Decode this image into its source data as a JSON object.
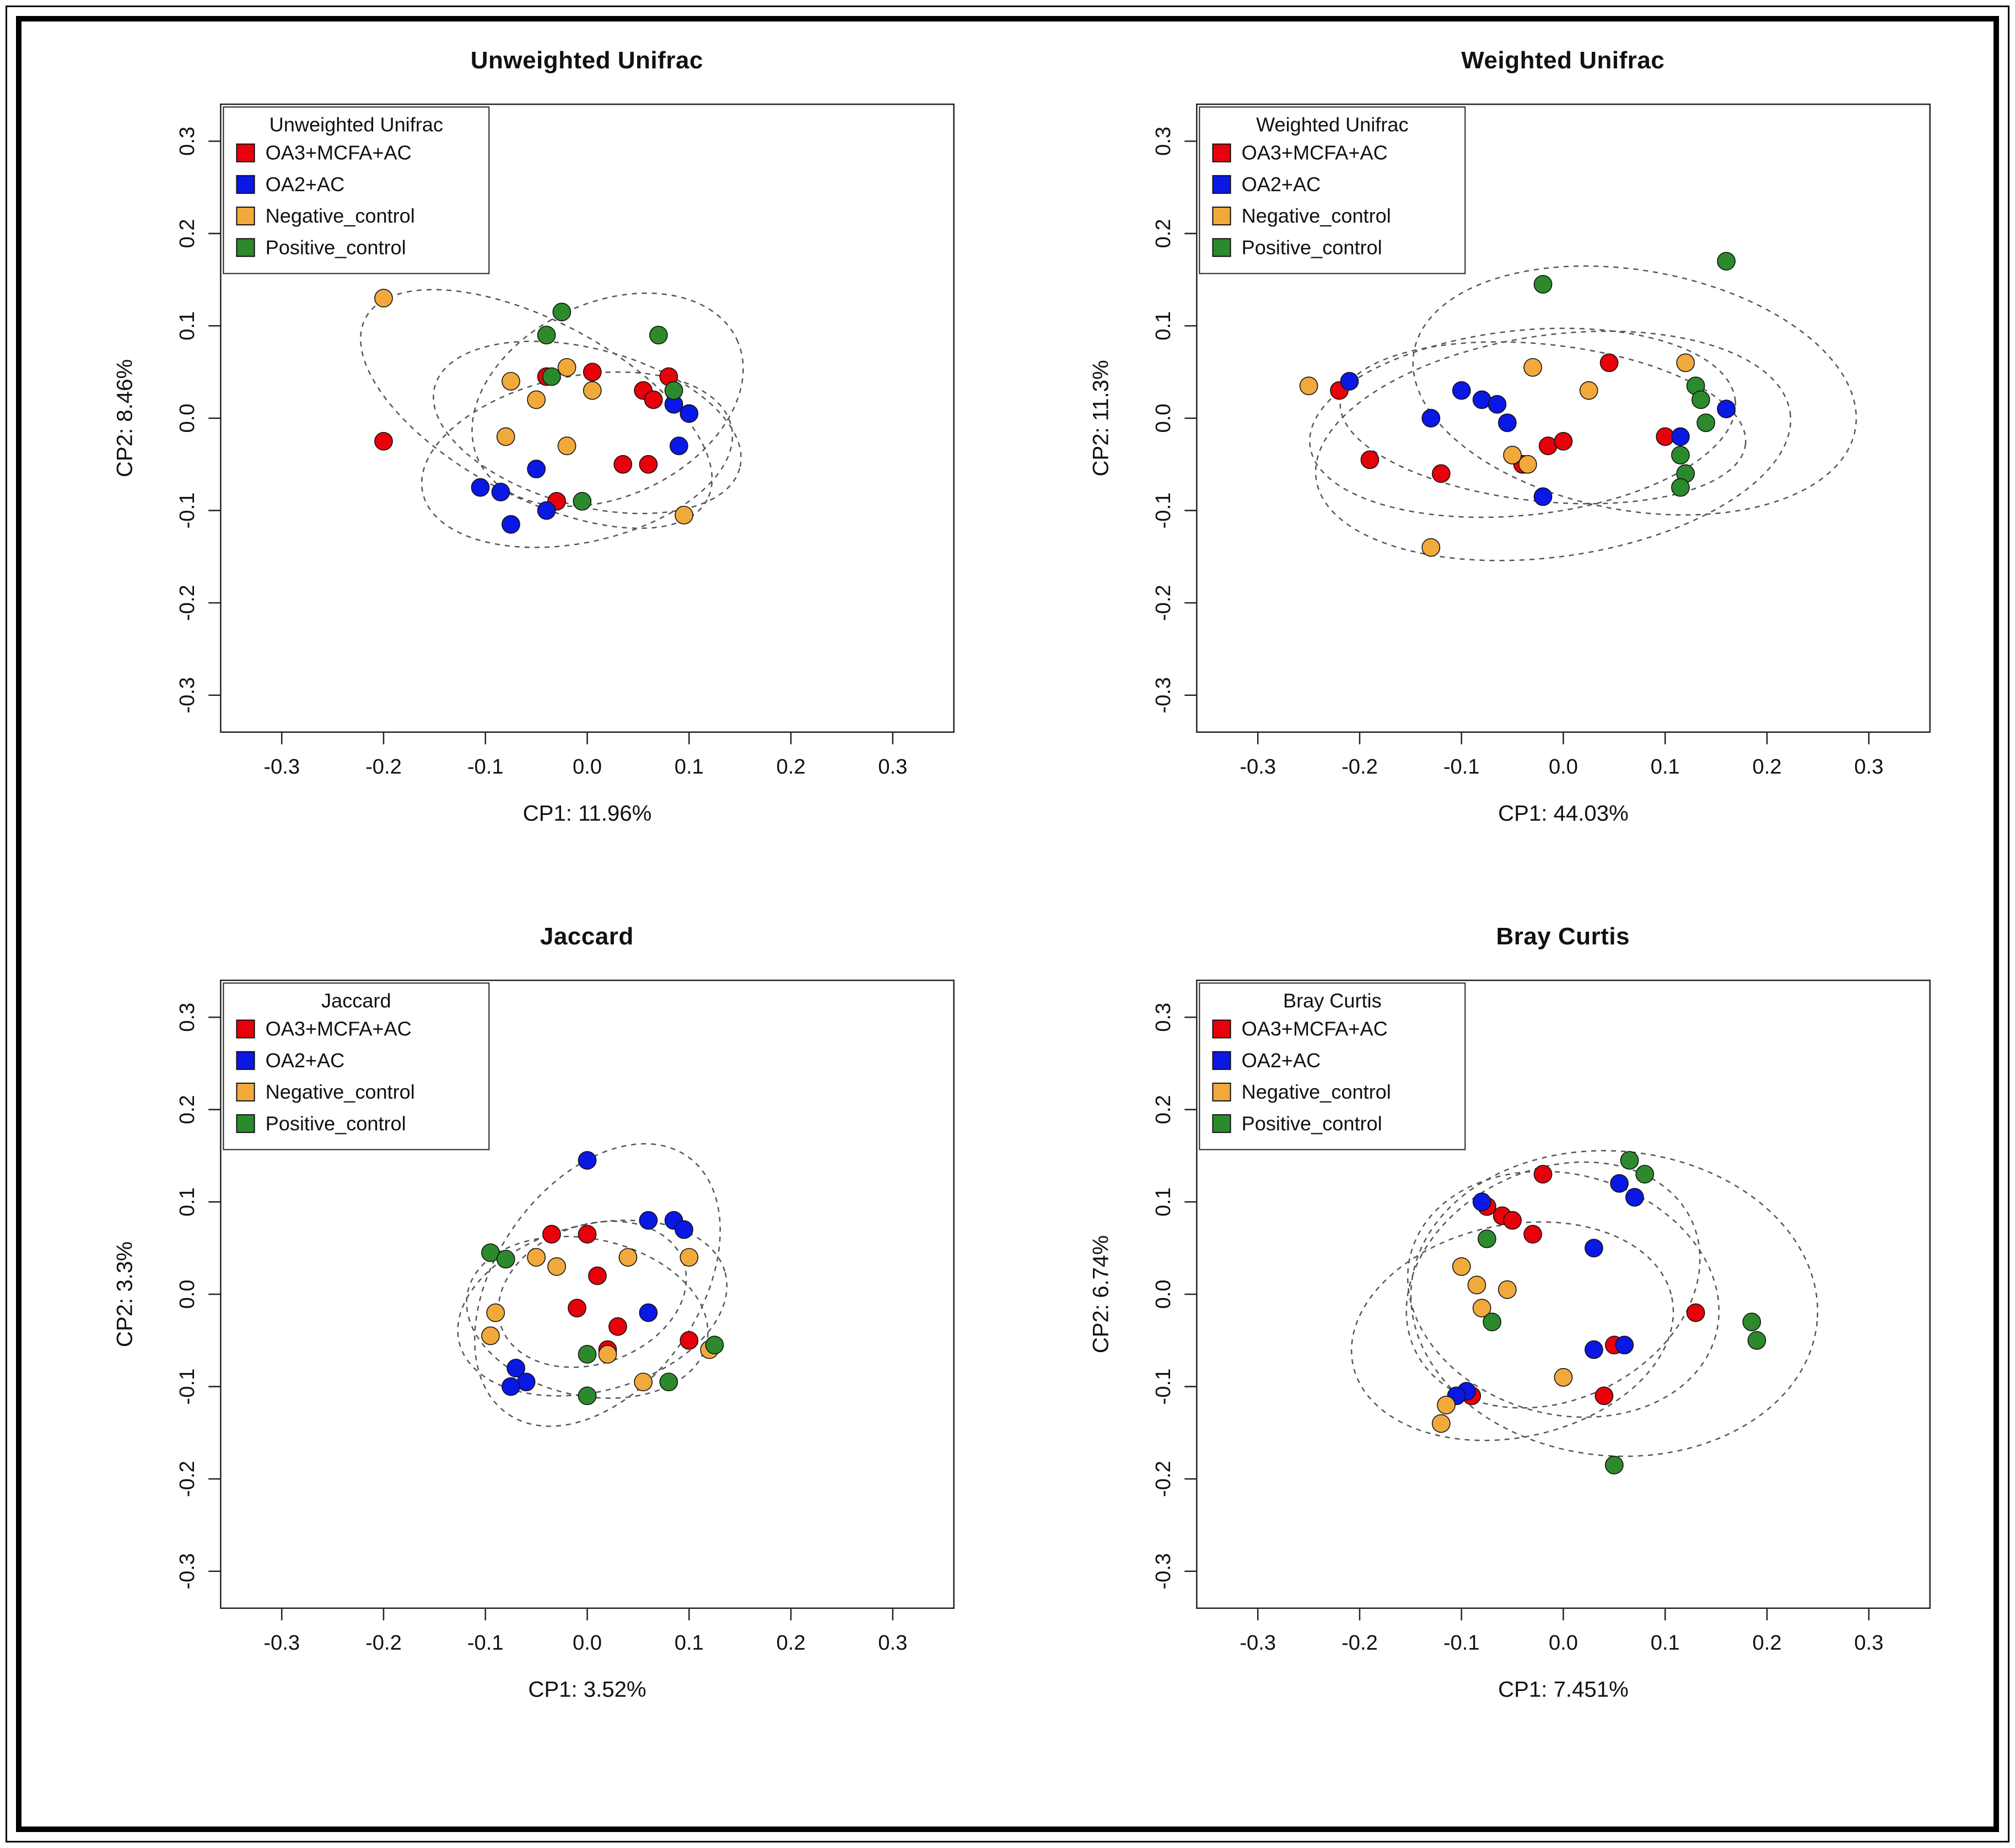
{
  "page": {
    "background": "#ffffff",
    "frame_color": "#000000"
  },
  "legend_groups": [
    "OA3+MCFA+AC",
    "OA2+AC",
    "Negative_control",
    "Positive_control"
  ],
  "group_colors": {
    "OA3+MCFA+AC": "#e8000b",
    "OA2+AC": "#0a18e6",
    "Negative_control": "#f2a93c",
    "Positive_control": "#2c8a2c"
  },
  "chart_data": [
    {
      "type": "scatter",
      "title": "Unweighted Unifrac",
      "legend_title": "Unweighted Unifrac",
      "xlabel": "CP1: 11.96%",
      "ylabel": "CP2: 8.46%",
      "xlim": [
        -0.36,
        0.36
      ],
      "ylim": [
        -0.34,
        0.34
      ],
      "ticks": [
        -0.3,
        -0.2,
        -0.1,
        0.0,
        0.1,
        0.2,
        0.3
      ],
      "grid": false,
      "legend_position": "top-left",
      "series": [
        {
          "name": "OA3+MCFA+AC",
          "color": "#e8000b",
          "points": [
            [
              -0.2,
              -0.025
            ],
            [
              -0.04,
              0.045
            ],
            [
              0.005,
              0.05
            ],
            [
              0.055,
              0.03
            ],
            [
              0.065,
              0.02
            ],
            [
              0.08,
              0.045
            ],
            [
              0.035,
              -0.05
            ],
            [
              0.06,
              -0.05
            ],
            [
              -0.03,
              -0.09
            ]
          ],
          "ellipse": {
            "cx": 0.0,
            "cy": -0.01,
            "rx": 0.155,
            "ry": 0.085,
            "angle": -15
          }
        },
        {
          "name": "OA2+AC",
          "color": "#0a18e6",
          "points": [
            [
              0.085,
              0.015
            ],
            [
              0.1,
              0.005
            ],
            [
              0.09,
              -0.03
            ],
            [
              -0.05,
              -0.055
            ],
            [
              -0.105,
              -0.075
            ],
            [
              -0.085,
              -0.08
            ],
            [
              -0.075,
              -0.115
            ],
            [
              -0.04,
              -0.1
            ]
          ],
          "ellipse": {
            "cx": -0.01,
            "cy": -0.045,
            "rx": 0.155,
            "ry": 0.09,
            "angle": 12
          }
        },
        {
          "name": "Negative_control",
          "color": "#f2a93c",
          "points": [
            [
              -0.2,
              0.13
            ],
            [
              -0.075,
              0.04
            ],
            [
              -0.02,
              0.055
            ],
            [
              -0.05,
              0.02
            ],
            [
              0.005,
              0.03
            ],
            [
              -0.08,
              -0.02
            ],
            [
              -0.02,
              -0.03
            ],
            [
              0.095,
              -0.105
            ]
          ],
          "ellipse": {
            "cx": -0.05,
            "cy": 0.01,
            "rx": 0.19,
            "ry": 0.095,
            "angle": -28
          }
        },
        {
          "name": "Positive_control",
          "color": "#2c8a2c",
          "points": [
            [
              -0.04,
              0.09
            ],
            [
              -0.025,
              0.115
            ],
            [
              0.07,
              0.09
            ],
            [
              -0.035,
              0.045
            ],
            [
              0.085,
              0.03
            ],
            [
              -0.005,
              -0.09
            ]
          ],
          "ellipse": {
            "cx": 0.02,
            "cy": 0.02,
            "rx": 0.14,
            "ry": 0.105,
            "angle": 25
          }
        }
      ]
    },
    {
      "type": "scatter",
      "title": "Weighted Unifrac",
      "legend_title": "Weighted Unifrac",
      "xlabel": "CP1: 44.03%",
      "ylabel": "CP2: 11.3%",
      "xlim": [
        -0.36,
        0.36
      ],
      "ylim": [
        -0.34,
        0.34
      ],
      "ticks": [
        -0.3,
        -0.2,
        -0.1,
        0.0,
        0.1,
        0.2,
        0.3
      ],
      "grid": false,
      "legend_position": "top-left",
      "series": [
        {
          "name": "OA3+MCFA+AC",
          "color": "#e8000b",
          "points": [
            [
              -0.22,
              0.03
            ],
            [
              -0.19,
              -0.045
            ],
            [
              -0.12,
              -0.06
            ],
            [
              -0.04,
              -0.05
            ],
            [
              -0.015,
              -0.03
            ],
            [
              0.0,
              -0.025
            ],
            [
              0.045,
              0.06
            ],
            [
              0.1,
              -0.02
            ]
          ],
          "ellipse": {
            "cx": -0.04,
            "cy": -0.005,
            "rx": 0.21,
            "ry": 0.1,
            "angle": 6
          }
        },
        {
          "name": "OA2+AC",
          "color": "#0a18e6",
          "points": [
            [
              -0.21,
              0.04
            ],
            [
              -0.13,
              0.0
            ],
            [
              -0.1,
              0.03
            ],
            [
              -0.08,
              0.02
            ],
            [
              -0.065,
              0.015
            ],
            [
              -0.055,
              -0.005
            ],
            [
              0.16,
              0.01
            ],
            [
              0.115,
              -0.02
            ],
            [
              -0.02,
              -0.085
            ]
          ],
          "ellipse": {
            "cx": -0.02,
            "cy": -0.005,
            "rx": 0.2,
            "ry": 0.085,
            "angle": -6
          }
        },
        {
          "name": "Negative_control",
          "color": "#f2a93c",
          "points": [
            [
              -0.25,
              0.035
            ],
            [
              -0.03,
              0.055
            ],
            [
              0.025,
              0.03
            ],
            [
              -0.05,
              -0.04
            ],
            [
              -0.035,
              -0.05
            ],
            [
              0.12,
              0.06
            ],
            [
              -0.13,
              -0.14
            ]
          ],
          "ellipse": {
            "cx": -0.01,
            "cy": -0.03,
            "rx": 0.235,
            "ry": 0.12,
            "angle": 8
          }
        },
        {
          "name": "Positive_control",
          "color": "#2c8a2c",
          "points": [
            [
              -0.02,
              0.145
            ],
            [
              0.16,
              0.17
            ],
            [
              0.13,
              0.035
            ],
            [
              0.135,
              0.02
            ],
            [
              0.14,
              -0.005
            ],
            [
              0.115,
              -0.04
            ],
            [
              0.12,
              -0.06
            ],
            [
              0.115,
              -0.075
            ]
          ],
          "ellipse": {
            "cx": 0.07,
            "cy": 0.03,
            "rx": 0.22,
            "ry": 0.13,
            "angle": -10
          }
        }
      ]
    },
    {
      "type": "scatter",
      "title": "Jaccard",
      "legend_title": "Jaccard",
      "xlabel": "CP1: 3.52%",
      "ylabel": "CP2: 3.3%",
      "xlim": [
        -0.36,
        0.36
      ],
      "ylim": [
        -0.34,
        0.34
      ],
      "ticks": [
        -0.3,
        -0.2,
        -0.1,
        0.0,
        0.1,
        0.2,
        0.3
      ],
      "grid": false,
      "legend_position": "top-left",
      "series": [
        {
          "name": "OA3+MCFA+AC",
          "color": "#e8000b",
          "points": [
            [
              -0.035,
              0.065
            ],
            [
              0.0,
              0.065
            ],
            [
              0.01,
              0.02
            ],
            [
              -0.01,
              -0.015
            ],
            [
              0.03,
              -0.035
            ],
            [
              0.02,
              -0.06
            ],
            [
              0.1,
              -0.05
            ]
          ],
          "ellipse": {
            "cx": 0.005,
            "cy": 0.0,
            "rx": 0.095,
            "ry": 0.075,
            "angle": 20
          }
        },
        {
          "name": "OA2+AC",
          "color": "#0a18e6",
          "points": [
            [
              0.0,
              0.145
            ],
            [
              0.06,
              0.08
            ],
            [
              0.085,
              0.08
            ],
            [
              0.095,
              0.07
            ],
            [
              0.06,
              -0.02
            ],
            [
              -0.07,
              -0.08
            ],
            [
              -0.06,
              -0.095
            ],
            [
              -0.075,
              -0.1
            ]
          ],
          "ellipse": {
            "cx": 0.01,
            "cy": 0.01,
            "rx": 0.1,
            "ry": 0.17,
            "angle": -35
          }
        },
        {
          "name": "Negative_control",
          "color": "#f2a93c",
          "points": [
            [
              -0.05,
              0.04
            ],
            [
              -0.03,
              0.03
            ],
            [
              0.04,
              0.04
            ],
            [
              0.1,
              0.04
            ],
            [
              -0.09,
              -0.02
            ],
            [
              -0.095,
              -0.045
            ],
            [
              0.02,
              -0.065
            ],
            [
              0.055,
              -0.095
            ],
            [
              0.12,
              -0.06
            ]
          ],
          "ellipse": {
            "cx": 0.005,
            "cy": -0.015,
            "rx": 0.135,
            "ry": 0.09,
            "angle": 15
          }
        },
        {
          "name": "Positive_control",
          "color": "#2c8a2c",
          "points": [
            [
              -0.095,
              0.045
            ],
            [
              -0.08,
              0.038
            ],
            [
              0.0,
              -0.065
            ],
            [
              0.0,
              -0.11
            ],
            [
              0.08,
              -0.095
            ],
            [
              0.125,
              -0.055
            ]
          ],
          "ellipse": {
            "cx": 0.0,
            "cy": -0.025,
            "rx": 0.12,
            "ry": 0.085,
            "angle": -12
          }
        }
      ]
    },
    {
      "type": "scatter",
      "title": "Bray Curtis",
      "legend_title": "Bray Curtis",
      "xlabel": "CP1: 7.451%",
      "ylabel": "CP2: 6.74%",
      "xlim": [
        -0.36,
        0.36
      ],
      "ylim": [
        -0.34,
        0.34
      ],
      "ticks": [
        -0.3,
        -0.2,
        -0.1,
        0.0,
        0.1,
        0.2,
        0.3
      ],
      "grid": false,
      "legend_position": "top-left",
      "series": [
        {
          "name": "OA3+MCFA+AC",
          "color": "#e8000b",
          "points": [
            [
              -0.075,
              0.095
            ],
            [
              -0.06,
              0.085
            ],
            [
              -0.05,
              0.08
            ],
            [
              -0.02,
              0.13
            ],
            [
              -0.03,
              0.065
            ],
            [
              0.13,
              -0.02
            ],
            [
              0.05,
              -0.055
            ],
            [
              0.04,
              -0.11
            ],
            [
              -0.09,
              -0.11
            ]
          ],
          "ellipse": {
            "cx": 0.0,
            "cy": 0.0,
            "rx": 0.155,
            "ry": 0.13,
            "angle": -15
          }
        },
        {
          "name": "OA2+AC",
          "color": "#0a18e6",
          "points": [
            [
              -0.08,
              0.1
            ],
            [
              0.055,
              0.12
            ],
            [
              0.07,
              0.105
            ],
            [
              0.03,
              0.05
            ],
            [
              0.03,
              -0.06
            ],
            [
              0.06,
              -0.055
            ],
            [
              -0.095,
              -0.105
            ],
            [
              -0.105,
              -0.11
            ]
          ],
          "ellipse": {
            "cx": -0.01,
            "cy": 0.01,
            "rx": 0.15,
            "ry": 0.125,
            "angle": 25
          }
        },
        {
          "name": "Negative_control",
          "color": "#f2a93c",
          "points": [
            [
              -0.1,
              0.03
            ],
            [
              -0.085,
              0.01
            ],
            [
              -0.08,
              -0.015
            ],
            [
              -0.055,
              0.005
            ],
            [
              0.0,
              -0.09
            ],
            [
              -0.115,
              -0.12
            ],
            [
              -0.12,
              -0.14
            ]
          ],
          "ellipse": {
            "cx": -0.05,
            "cy": -0.04,
            "rx": 0.16,
            "ry": 0.115,
            "angle": 12
          }
        },
        {
          "name": "Positive_control",
          "color": "#2c8a2c",
          "points": [
            [
              0.065,
              0.145
            ],
            [
              0.08,
              0.13
            ],
            [
              -0.075,
              0.06
            ],
            [
              -0.07,
              -0.03
            ],
            [
              0.185,
              -0.03
            ],
            [
              0.19,
              -0.05
            ],
            [
              0.05,
              -0.185
            ]
          ],
          "ellipse": {
            "cx": 0.05,
            "cy": -0.01,
            "rx": 0.2,
            "ry": 0.165,
            "angle": -5
          }
        }
      ]
    }
  ]
}
